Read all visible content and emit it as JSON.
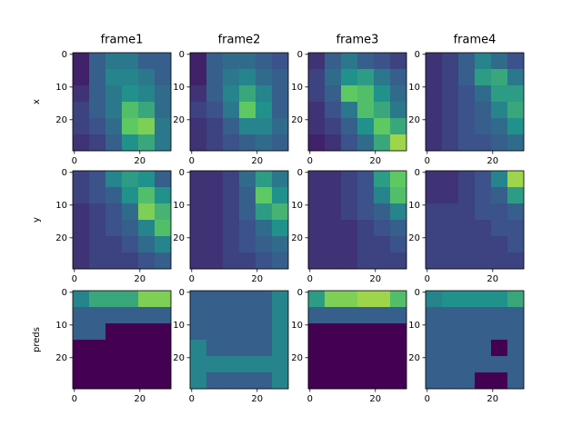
{
  "chart_data": [
    {
      "type": "heatmap",
      "title": "frame1",
      "ylabel": "x",
      "colormap": "viridis",
      "xlim": [
        -0.5,
        29.5
      ],
      "ylim": [
        29.5,
        -0.5
      ],
      "xticks": [
        0,
        20
      ],
      "yticks": [
        0,
        10,
        20
      ],
      "values": [
        [
          0.1,
          0.3,
          0.4,
          0.4,
          0.3,
          0.3
        ],
        [
          0.1,
          0.3,
          0.45,
          0.45,
          0.4,
          0.3
        ],
        [
          0.15,
          0.3,
          0.4,
          0.5,
          0.45,
          0.35
        ],
        [
          0.2,
          0.3,
          0.4,
          0.7,
          0.6,
          0.35
        ],
        [
          0.2,
          0.25,
          0.35,
          0.75,
          0.8,
          0.4
        ],
        [
          0.15,
          0.2,
          0.3,
          0.5,
          0.6,
          0.4
        ]
      ]
    },
    {
      "type": "heatmap",
      "title": "frame2",
      "colormap": "viridis",
      "xlim": [
        -0.5,
        29.5
      ],
      "ylim": [
        29.5,
        -0.5
      ],
      "xticks": [
        0,
        20
      ],
      "yticks": [
        0,
        10,
        20
      ],
      "values": [
        [
          0.1,
          0.3,
          0.35,
          0.35,
          0.3,
          0.25
        ],
        [
          0.1,
          0.3,
          0.4,
          0.45,
          0.35,
          0.3
        ],
        [
          0.15,
          0.3,
          0.45,
          0.6,
          0.45,
          0.3
        ],
        [
          0.2,
          0.25,
          0.4,
          0.75,
          0.5,
          0.3
        ],
        [
          0.15,
          0.2,
          0.3,
          0.45,
          0.45,
          0.35
        ],
        [
          0.15,
          0.2,
          0.25,
          0.3,
          0.35,
          0.3
        ]
      ]
    },
    {
      "type": "heatmap",
      "title": "frame3",
      "colormap": "viridis",
      "xlim": [
        -0.5,
        29.5
      ],
      "ylim": [
        29.5,
        -0.5
      ],
      "xticks": [
        0,
        20
      ],
      "yticks": [
        0,
        10,
        20
      ],
      "values": [
        [
          0.15,
          0.3,
          0.4,
          0.3,
          0.25,
          0.2
        ],
        [
          0.2,
          0.35,
          0.5,
          0.55,
          0.4,
          0.3
        ],
        [
          0.2,
          0.3,
          0.75,
          0.7,
          0.5,
          0.35
        ],
        [
          0.15,
          0.25,
          0.4,
          0.7,
          0.6,
          0.4
        ],
        [
          0.15,
          0.2,
          0.3,
          0.5,
          0.75,
          0.6
        ],
        [
          0.1,
          0.15,
          0.25,
          0.35,
          0.6,
          0.85
        ]
      ]
    },
    {
      "type": "heatmap",
      "title": "frame4",
      "colormap": "viridis",
      "xlim": [
        -0.5,
        29.5
      ],
      "ylim": [
        29.5,
        -0.5
      ],
      "xticks": [
        0,
        20
      ],
      "yticks": [
        0,
        10,
        20
      ],
      "values": [
        [
          0.15,
          0.2,
          0.3,
          0.45,
          0.35,
          0.25
        ],
        [
          0.15,
          0.2,
          0.3,
          0.55,
          0.6,
          0.4
        ],
        [
          0.15,
          0.2,
          0.25,
          0.35,
          0.55,
          0.55
        ],
        [
          0.15,
          0.2,
          0.25,
          0.3,
          0.45,
          0.6
        ],
        [
          0.15,
          0.2,
          0.25,
          0.3,
          0.35,
          0.5
        ],
        [
          0.15,
          0.2,
          0.25,
          0.25,
          0.3,
          0.35
        ]
      ]
    },
    {
      "type": "heatmap",
      "ylabel": "y",
      "colormap": "viridis",
      "xlim": [
        -0.5,
        29.5
      ],
      "ylim": [
        29.5,
        -0.5
      ],
      "xticks": [
        0,
        20
      ],
      "yticks": [
        0,
        10,
        20
      ],
      "values": [
        [
          0.2,
          0.25,
          0.45,
          0.55,
          0.5,
          0.3
        ],
        [
          0.2,
          0.25,
          0.3,
          0.5,
          0.7,
          0.5
        ],
        [
          0.15,
          0.2,
          0.25,
          0.35,
          0.8,
          0.65
        ],
        [
          0.15,
          0.2,
          0.25,
          0.3,
          0.45,
          0.7
        ],
        [
          0.15,
          0.2,
          0.2,
          0.25,
          0.35,
          0.45
        ],
        [
          0.15,
          0.2,
          0.2,
          0.2,
          0.25,
          0.3
        ]
      ]
    },
    {
      "type": "heatmap",
      "colormap": "viridis",
      "xlim": [
        -0.5,
        29.5
      ],
      "ylim": [
        29.5,
        -0.5
      ],
      "xticks": [
        0,
        20
      ],
      "yticks": [
        0,
        10,
        20
      ],
      "values": [
        [
          0.15,
          0.15,
          0.2,
          0.35,
          0.55,
          0.4
        ],
        [
          0.15,
          0.15,
          0.2,
          0.3,
          0.75,
          0.5
        ],
        [
          0.15,
          0.15,
          0.2,
          0.3,
          0.55,
          0.65
        ],
        [
          0.15,
          0.15,
          0.2,
          0.25,
          0.35,
          0.5
        ],
        [
          0.15,
          0.15,
          0.2,
          0.25,
          0.3,
          0.35
        ],
        [
          0.15,
          0.15,
          0.2,
          0.2,
          0.25,
          0.3
        ]
      ]
    },
    {
      "type": "heatmap",
      "colormap": "viridis",
      "xlim": [
        -0.5,
        29.5
      ],
      "ylim": [
        29.5,
        -0.5
      ],
      "xticks": [
        0,
        20
      ],
      "yticks": [
        0,
        10,
        20
      ],
      "values": [
        [
          0.15,
          0.15,
          0.2,
          0.25,
          0.55,
          0.75
        ],
        [
          0.15,
          0.15,
          0.2,
          0.25,
          0.45,
          0.7
        ],
        [
          0.15,
          0.15,
          0.2,
          0.25,
          0.3,
          0.45
        ],
        [
          0.15,
          0.15,
          0.15,
          0.2,
          0.25,
          0.3
        ],
        [
          0.15,
          0.15,
          0.15,
          0.2,
          0.2,
          0.25
        ],
        [
          0.15,
          0.15,
          0.15,
          0.2,
          0.2,
          0.2
        ]
      ]
    },
    {
      "type": "heatmap",
      "colormap": "viridis",
      "xlim": [
        -0.5,
        29.5
      ],
      "ylim": [
        29.5,
        -0.5
      ],
      "xticks": [
        0,
        20
      ],
      "yticks": [
        0,
        10,
        20
      ],
      "values": [
        [
          0.15,
          0.15,
          0.2,
          0.25,
          0.45,
          0.85
        ],
        [
          0.15,
          0.15,
          0.2,
          0.25,
          0.3,
          0.55
        ],
        [
          0.2,
          0.2,
          0.2,
          0.25,
          0.25,
          0.3
        ],
        [
          0.2,
          0.2,
          0.2,
          0.2,
          0.25,
          0.25
        ],
        [
          0.2,
          0.2,
          0.2,
          0.2,
          0.2,
          0.25
        ],
        [
          0.2,
          0.2,
          0.2,
          0.2,
          0.2,
          0.2
        ]
      ]
    },
    {
      "type": "heatmap",
      "ylabel": "preds",
      "colormap": "viridis",
      "xlim": [
        -0.5,
        29.5
      ],
      "ylim": [
        29.5,
        -0.5
      ],
      "xticks": [
        0,
        20
      ],
      "yticks": [
        0,
        10,
        20
      ],
      "values": [
        [
          0.45,
          0.6,
          0.6,
          0.6,
          0.8,
          0.8
        ],
        [
          0.3,
          0.3,
          0.3,
          0.3,
          0.3,
          0.3
        ],
        [
          0.3,
          0.3,
          0,
          0,
          0,
          0
        ],
        [
          0,
          0,
          0,
          0,
          0,
          0
        ],
        [
          0,
          0,
          0,
          0,
          0,
          0
        ],
        [
          0,
          0,
          0,
          0,
          0,
          0
        ]
      ]
    },
    {
      "type": "heatmap",
      "colormap": "viridis",
      "xlim": [
        -0.5,
        29.5
      ],
      "ylim": [
        29.5,
        -0.5
      ],
      "xticks": [
        0,
        20
      ],
      "yticks": [
        0,
        10,
        20
      ],
      "values": [
        [
          0.3,
          0.3,
          0.3,
          0.3,
          0.3,
          0.45
        ],
        [
          0.3,
          0.3,
          0.3,
          0.3,
          0.3,
          0.45
        ],
        [
          0.3,
          0.3,
          0.3,
          0.3,
          0.3,
          0.45
        ],
        [
          0.45,
          0.3,
          0.3,
          0.3,
          0.3,
          0.45
        ],
        [
          0.45,
          0.45,
          0.45,
          0.45,
          0.45,
          0.45
        ],
        [
          0.45,
          0.3,
          0.3,
          0.3,
          0.3,
          0.45
        ]
      ]
    },
    {
      "type": "heatmap",
      "colormap": "viridis",
      "xlim": [
        -0.5,
        29.5
      ],
      "ylim": [
        29.5,
        -0.5
      ],
      "xticks": [
        0,
        20
      ],
      "yticks": [
        0,
        10,
        20
      ],
      "values": [
        [
          0.55,
          0.8,
          0.8,
          0.85,
          0.85,
          0.7
        ],
        [
          0.3,
          0.3,
          0.3,
          0.3,
          0.3,
          0.3
        ],
        [
          0,
          0,
          0,
          0,
          0,
          0
        ],
        [
          0,
          0,
          0,
          0,
          0,
          0
        ],
        [
          0,
          0,
          0,
          0,
          0,
          0
        ],
        [
          0,
          0,
          0,
          0,
          0,
          0
        ]
      ]
    },
    {
      "type": "heatmap",
      "colormap": "viridis",
      "xlim": [
        -0.5,
        29.5
      ],
      "ylim": [
        29.5,
        -0.5
      ],
      "xticks": [
        0,
        20
      ],
      "yticks": [
        0,
        10,
        20
      ],
      "values": [
        [
          0.45,
          0.5,
          0.5,
          0.5,
          0.5,
          0.6
        ],
        [
          0.3,
          0.3,
          0.3,
          0.3,
          0.3,
          0.3
        ],
        [
          0.3,
          0.3,
          0.3,
          0.3,
          0.3,
          0.3
        ],
        [
          0.3,
          0.3,
          0.3,
          0.3,
          0,
          0.3
        ],
        [
          0.3,
          0.3,
          0.3,
          0.3,
          0.3,
          0.3
        ],
        [
          0.3,
          0.3,
          0.3,
          0,
          0,
          0.3
        ]
      ]
    }
  ]
}
